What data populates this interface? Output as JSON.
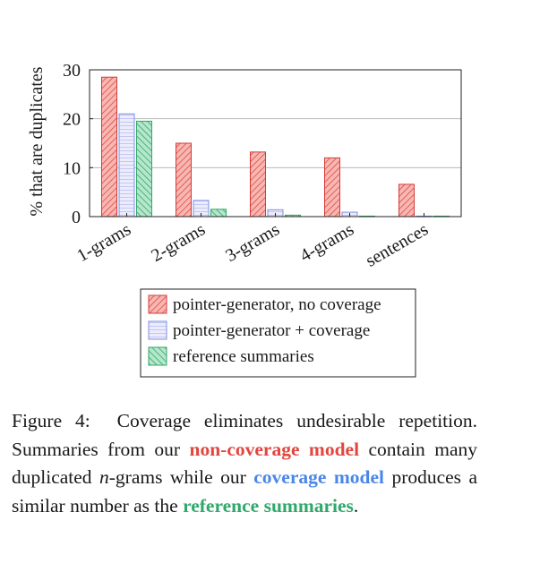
{
  "chart_data": {
    "type": "bar",
    "categories": [
      "1-grams",
      "2-grams",
      "3-grams",
      "4-grams",
      "sentences"
    ],
    "series": [
      {
        "name": "pointer-generator, no coverage",
        "values": [
          28.5,
          15.0,
          13.2,
          12.0,
          6.6
        ],
        "color": "#e2463f",
        "pattern": "diagonal-hatch"
      },
      {
        "name": "pointer-generator + coverage",
        "values": [
          21.0,
          3.3,
          1.4,
          0.9,
          0.1
        ],
        "color": "#7f8fe0",
        "pattern": "horizontal-lines"
      },
      {
        "name": "reference summaries",
        "values": [
          19.5,
          1.5,
          0.3,
          0.1,
          0.1
        ],
        "color": "#2fa86a",
        "pattern": "diagonal-hatch"
      }
    ],
    "ylabel": "% that are duplicates",
    "yticks": [
      0,
      10,
      20,
      30
    ],
    "ylim": [
      0,
      30
    ],
    "grid": true,
    "legend_position": "bottom"
  },
  "caption": {
    "prefix": "Figure 4:",
    "text_1": "Coverage eliminates undesirable repetition. Summaries from our",
    "highlight_red": "non-coverage model",
    "text_2": "contain many duplicated",
    "n_italic": "n",
    "text_3": "-grams while our",
    "highlight_blue": "coverage model",
    "text_4": "produces a similar number as the",
    "highlight_green": "reference summaries",
    "text_5": "."
  }
}
